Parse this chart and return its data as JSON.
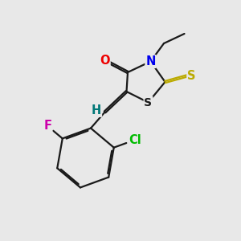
{
  "bg_color": "#e8e8e8",
  "bond_color": "#1a1a1a",
  "bond_width": 1.6,
  "dbo": 0.032,
  "atom_colors": {
    "O": "#ee0000",
    "N": "#0000ee",
    "S_thio": "#bbaa00",
    "S_ring": "#1a1a1a",
    "Cl": "#00bb00",
    "F": "#cc00aa",
    "H": "#007777",
    "C": "#1a1a1a"
  },
  "font_size": 10.5,
  "small_font_size": 9.5
}
